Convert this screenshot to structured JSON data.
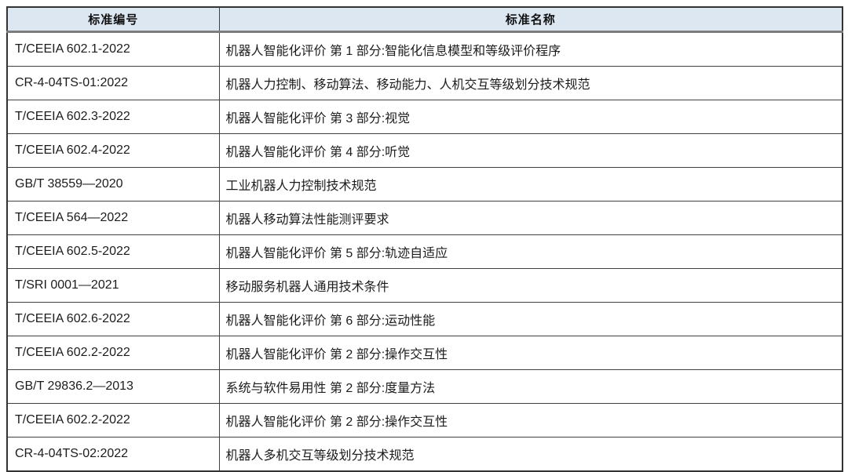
{
  "table": {
    "columns": [
      {
        "label": "标准编号"
      },
      {
        "label": "标准名称"
      }
    ],
    "rows": [
      {
        "code": "T/CEEIA 602.1-2022",
        "name": "机器人智能化评价 第 1 部分:智能化信息模型和等级评价程序"
      },
      {
        "code": "CR-4-04TS-01:2022",
        "name": "机器人力控制、移动算法、移动能力、人机交互等级划分技术规范"
      },
      {
        "code": "T/CEEIA 602.3-2022",
        "name": "机器人智能化评价 第 3 部分:视觉"
      },
      {
        "code": "T/CEEIA 602.4-2022",
        "name": "机器人智能化评价 第 4 部分:听觉"
      },
      {
        "code": "GB/T 38559—2020",
        "name": "工业机器人力控制技术规范"
      },
      {
        "code": "T/CEEIA 564—2022",
        "name": "机器人移动算法性能测评要求"
      },
      {
        "code": "T/CEEIA 602.5-2022",
        "name": "机器人智能化评价 第 5 部分:轨迹自适应"
      },
      {
        "code": "T/SRI 0001—2021",
        "name": "移动服务机器人通用技术条件"
      },
      {
        "code": "T/CEEIA 602.6-2022",
        "name": "机器人智能化评价 第 6 部分:运动性能"
      },
      {
        "code": "T/CEEIA 602.2-2022",
        "name": "机器人智能化评价 第 2 部分:操作交互性"
      },
      {
        "code": "GB/T 29836.2—2013",
        "name": "系统与软件易用性 第 2 部分:度量方法"
      },
      {
        "code": "T/CEEIA 602.2-2022",
        "name": "机器人智能化评价 第 2 部分:操作交互性"
      },
      {
        "code": "CR-4-04TS-02:2022",
        "name": "机器人多机交互等级划分技术规范"
      }
    ],
    "colors": {
      "header_bg": "#dde7f2",
      "inner_border": "#404040",
      "outer_border": "#333333",
      "text": "#1c1c1c"
    }
  }
}
